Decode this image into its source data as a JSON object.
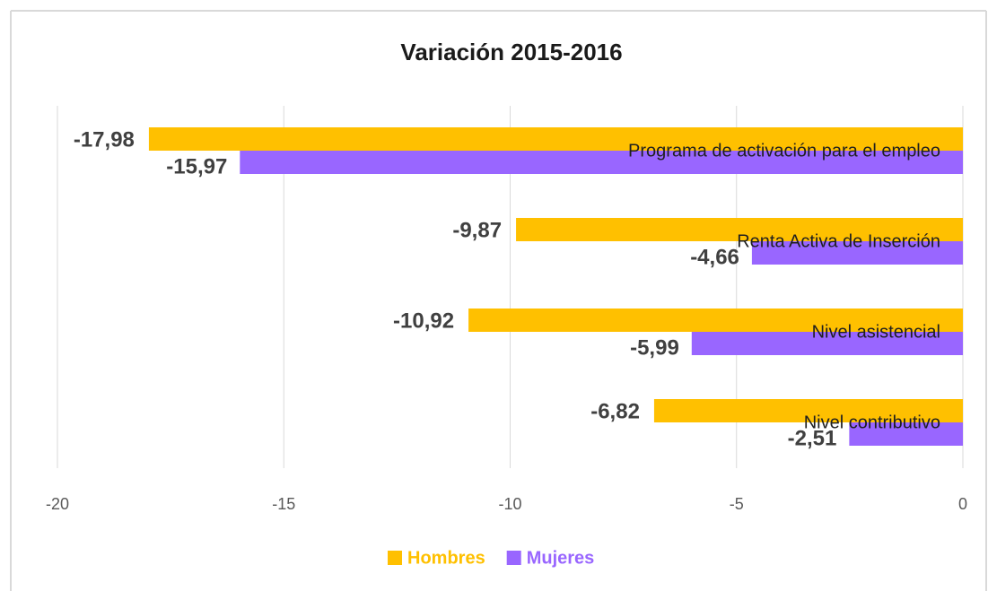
{
  "chart_data": {
    "type": "hbar",
    "title": "Variación 2015-2016",
    "categories": [
      "Programa de activación para el empleo",
      "Renta Activa de Inserción",
      "Nivel asistencial",
      "Nivel contributivo"
    ],
    "series": [
      {
        "name": "Hombres",
        "color": "#FFC000",
        "values": [
          -17.98,
          -9.87,
          -10.92,
          -6.82
        ],
        "value_labels": [
          "-17,98",
          "-9,87",
          "-10,92",
          "-6,82"
        ]
      },
      {
        "name": "Mujeres",
        "color": "#9966FF",
        "values": [
          -15.97,
          -4.66,
          -5.99,
          -2.51
        ],
        "value_labels": [
          "-15,97",
          "-4,66",
          "-5,99",
          "-2,51"
        ]
      }
    ],
    "xlim": [
      -20,
      0
    ],
    "xticks": [
      -20,
      -15,
      -10,
      -5,
      0
    ],
    "grid": true,
    "legend": "bottom"
  }
}
